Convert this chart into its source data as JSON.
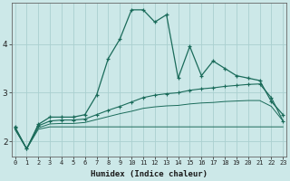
{
  "xlabel": "Humidex (Indice chaleur)",
  "background_color": "#cce8e8",
  "grid_color": "#aad0d0",
  "line_color": "#1a6b5a",
  "x_values": [
    0,
    1,
    2,
    3,
    4,
    5,
    6,
    7,
    8,
    9,
    10,
    11,
    12,
    13,
    14,
    15,
    16,
    17,
    18,
    19,
    20,
    21,
    22,
    23
  ],
  "line1_y": [
    2.3,
    1.85,
    2.35,
    2.5,
    2.5,
    2.5,
    2.55,
    2.95,
    3.7,
    4.1,
    4.7,
    4.7,
    4.45,
    4.6,
    3.3,
    3.95,
    3.35,
    3.65,
    3.5,
    3.35,
    3.3,
    3.25,
    2.82,
    2.55
  ],
  "line2_y": [
    2.28,
    1.85,
    2.32,
    2.42,
    2.44,
    2.44,
    2.46,
    2.55,
    2.64,
    2.72,
    2.81,
    2.9,
    2.95,
    2.98,
    3.0,
    3.05,
    3.08,
    3.1,
    3.13,
    3.15,
    3.17,
    3.18,
    2.9,
    2.42
  ],
  "line3_y": [
    2.25,
    1.85,
    2.28,
    2.36,
    2.37,
    2.37,
    2.39,
    2.45,
    2.51,
    2.57,
    2.62,
    2.68,
    2.71,
    2.73,
    2.74,
    2.77,
    2.79,
    2.8,
    2.82,
    2.83,
    2.84,
    2.84,
    2.72,
    2.42
  ],
  "line4_y": [
    2.25,
    1.85,
    2.25,
    2.3,
    2.3,
    2.3,
    2.3,
    2.3,
    2.3,
    2.3,
    2.3,
    2.3,
    2.3,
    2.3,
    2.3,
    2.3,
    2.3,
    2.3,
    2.3,
    2.3,
    2.3,
    2.3,
    2.3,
    2.3
  ],
  "ylim": [
    1.7,
    4.85
  ],
  "yticks": [
    2,
    3,
    4
  ],
  "xticks": [
    0,
    1,
    2,
    3,
    4,
    5,
    6,
    7,
    8,
    9,
    10,
    11,
    12,
    13,
    14,
    15,
    16,
    17,
    18,
    19,
    20,
    21,
    22,
    23
  ]
}
